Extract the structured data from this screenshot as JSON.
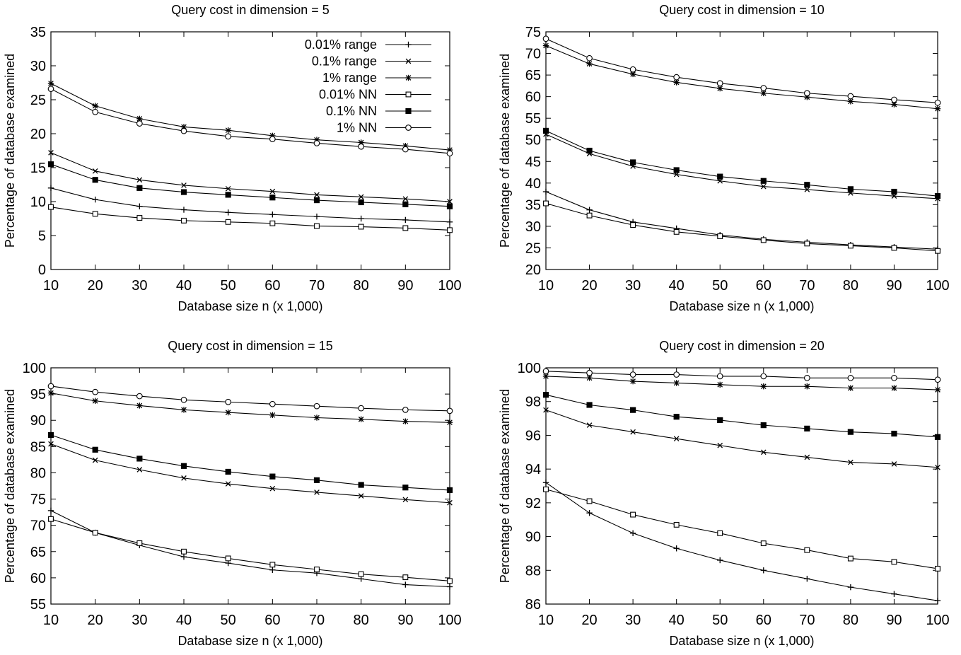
{
  "chart_data": [
    {
      "type": "line",
      "title": "Query cost in dimension = 5",
      "xlabel": "Database size n (x 1,000)",
      "ylabel": "Percentage of database examined",
      "x": [
        10,
        20,
        30,
        40,
        50,
        60,
        70,
        80,
        90,
        100
      ],
      "xlim": [
        10,
        100
      ],
      "ylim": [
        0,
        35
      ],
      "yticks": [
        0,
        5,
        10,
        15,
        20,
        25,
        30,
        35
      ],
      "legend": "top-right",
      "series": [
        {
          "name": "0.01% range",
          "marker": "plus",
          "values": [
            12.0,
            10.3,
            9.3,
            8.8,
            8.4,
            8.1,
            7.8,
            7.5,
            7.3,
            7.0
          ]
        },
        {
          "name": "0.1% range",
          "marker": "cross",
          "values": [
            17.2,
            14.5,
            13.2,
            12.4,
            11.9,
            11.5,
            11.0,
            10.7,
            10.4,
            10.0
          ]
        },
        {
          "name": "1% range",
          "marker": "star",
          "values": [
            27.4,
            24.1,
            22.2,
            21.0,
            20.5,
            19.7,
            19.1,
            18.7,
            18.2,
            17.6
          ]
        },
        {
          "name": "0.01% NN",
          "marker": "box",
          "values": [
            9.2,
            8.2,
            7.6,
            7.2,
            7.0,
            6.8,
            6.4,
            6.3,
            6.1,
            5.8
          ]
        },
        {
          "name": "0.1% NN",
          "marker": "filled-box",
          "values": [
            15.5,
            13.2,
            12.0,
            11.4,
            11.0,
            10.6,
            10.2,
            9.9,
            9.6,
            9.3
          ]
        },
        {
          "name": "1% NN",
          "marker": "circle",
          "values": [
            26.6,
            23.2,
            21.5,
            20.4,
            19.6,
            19.2,
            18.6,
            18.1,
            17.7,
            17.1
          ]
        }
      ]
    },
    {
      "type": "line",
      "title": "Query cost in dimension = 10",
      "xlabel": "Database size n (x 1,000)",
      "ylabel": "Percentage of database examined",
      "x": [
        10,
        20,
        30,
        40,
        50,
        60,
        70,
        80,
        90,
        100
      ],
      "xlim": [
        10,
        100
      ],
      "ylim": [
        20,
        75
      ],
      "yticks": [
        20,
        25,
        30,
        35,
        40,
        45,
        50,
        55,
        60,
        65,
        70,
        75
      ],
      "series": [
        {
          "name": "0.01% range",
          "marker": "plus",
          "values": [
            38.0,
            33.8,
            31.0,
            29.5,
            28.0,
            27.0,
            26.3,
            25.7,
            25.2,
            24.7
          ]
        },
        {
          "name": "0.1% range",
          "marker": "cross",
          "values": [
            51.3,
            46.8,
            43.9,
            42.0,
            40.5,
            39.2,
            38.5,
            37.7,
            37.0,
            36.4
          ]
        },
        {
          "name": "1% range",
          "marker": "star",
          "values": [
            71.8,
            67.6,
            65.2,
            63.3,
            61.9,
            60.8,
            59.9,
            58.9,
            58.2,
            57.2
          ]
        },
        {
          "name": "0.01% NN",
          "marker": "box",
          "values": [
            35.3,
            32.5,
            30.3,
            28.7,
            27.7,
            26.8,
            26.0,
            25.5,
            25.0,
            24.3
          ]
        },
        {
          "name": "0.1% NN",
          "marker": "filled-box",
          "values": [
            52.1,
            47.5,
            44.8,
            43.0,
            41.5,
            40.5,
            39.6,
            38.6,
            38.0,
            37.0
          ]
        },
        {
          "name": "1% NN",
          "marker": "circle",
          "values": [
            73.4,
            68.9,
            66.3,
            64.5,
            63.1,
            62.0,
            60.8,
            60.1,
            59.3,
            58.6
          ]
        }
      ]
    },
    {
      "type": "line",
      "title": "Query cost in dimension = 15",
      "xlabel": "Database size n (x 1,000)",
      "ylabel": "Percentage of database examined",
      "x": [
        10,
        20,
        30,
        40,
        50,
        60,
        70,
        80,
        90,
        100
      ],
      "xlim": [
        10,
        100
      ],
      "ylim": [
        55,
        100
      ],
      "yticks": [
        55,
        60,
        65,
        70,
        75,
        80,
        85,
        90,
        95,
        100
      ],
      "series": [
        {
          "name": "0.01% range",
          "marker": "plus",
          "values": [
            72.8,
            68.6,
            66.2,
            64.0,
            62.8,
            61.5,
            60.9,
            59.8,
            58.7,
            58.3
          ]
        },
        {
          "name": "0.1% range",
          "marker": "cross",
          "values": [
            85.5,
            82.4,
            80.6,
            79.0,
            77.9,
            77.0,
            76.3,
            75.6,
            74.9,
            74.3
          ]
        },
        {
          "name": "1% range",
          "marker": "star",
          "values": [
            95.2,
            93.7,
            92.8,
            92.0,
            91.5,
            91.0,
            90.5,
            90.2,
            89.8,
            89.6
          ]
        },
        {
          "name": "0.01% NN",
          "marker": "box",
          "values": [
            71.2,
            68.6,
            66.6,
            65.0,
            63.7,
            62.5,
            61.6,
            60.7,
            60.1,
            59.4
          ]
        },
        {
          "name": "0.1% NN",
          "marker": "filled-box",
          "values": [
            87.2,
            84.4,
            82.7,
            81.3,
            80.2,
            79.3,
            78.6,
            77.7,
            77.2,
            76.7
          ]
        },
        {
          "name": "1% NN",
          "marker": "circle",
          "values": [
            96.5,
            95.4,
            94.6,
            93.9,
            93.5,
            93.1,
            92.7,
            92.3,
            92.0,
            91.8
          ]
        }
      ]
    },
    {
      "type": "line",
      "title": "Query cost in dimension = 20",
      "xlabel": "Database size n (x 1,000)",
      "ylabel": "Percentage of database examined",
      "x": [
        10,
        20,
        30,
        40,
        50,
        60,
        70,
        80,
        90,
        100
      ],
      "xlim": [
        10,
        100
      ],
      "ylim": [
        86,
        100
      ],
      "yticks": [
        86,
        88,
        90,
        92,
        94,
        96,
        98,
        100
      ],
      "series": [
        {
          "name": "0.01% range",
          "marker": "plus",
          "values": [
            93.2,
            91.4,
            90.2,
            89.3,
            88.6,
            88.0,
            87.5,
            87.0,
            86.6,
            86.2
          ]
        },
        {
          "name": "0.1% range",
          "marker": "cross",
          "values": [
            97.5,
            96.6,
            96.2,
            95.8,
            95.4,
            95.0,
            94.7,
            94.4,
            94.3,
            94.1
          ]
        },
        {
          "name": "1% range",
          "marker": "star",
          "values": [
            99.5,
            99.4,
            99.2,
            99.1,
            99.0,
            98.9,
            98.9,
            98.8,
            98.8,
            98.7
          ]
        },
        {
          "name": "0.01% NN",
          "marker": "box",
          "values": [
            92.8,
            92.1,
            91.3,
            90.7,
            90.2,
            89.6,
            89.2,
            88.7,
            88.5,
            88.1
          ]
        },
        {
          "name": "0.1% NN",
          "marker": "filled-box",
          "values": [
            98.4,
            97.8,
            97.5,
            97.1,
            96.9,
            96.6,
            96.4,
            96.2,
            96.1,
            95.9
          ]
        },
        {
          "name": "1% NN",
          "marker": "circle",
          "values": [
            99.8,
            99.7,
            99.6,
            99.6,
            99.5,
            99.5,
            99.4,
            99.4,
            99.4,
            99.3
          ]
        }
      ]
    }
  ]
}
